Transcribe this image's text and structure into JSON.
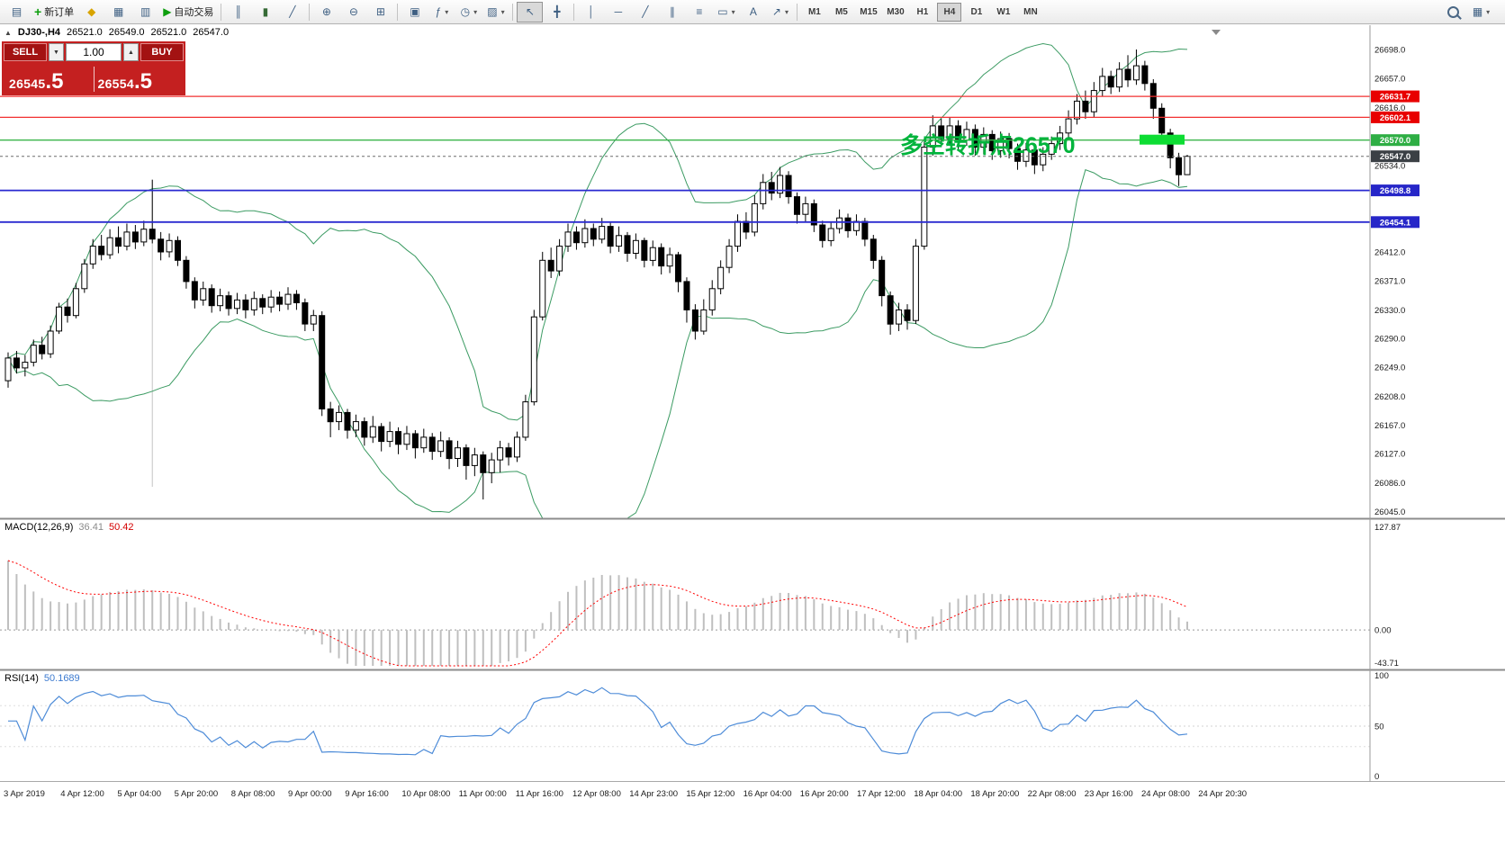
{
  "toolbar": {
    "buttons_left": [
      {
        "name": "new-chart",
        "icon": "chartplus"
      },
      {
        "name": "new-order",
        "icon": "plus",
        "label": "新订单"
      },
      {
        "name": "favorites",
        "icon": "diamond"
      },
      {
        "name": "market-watch",
        "icon": "grid-window"
      },
      {
        "name": "data-window",
        "icon": "panel-window"
      },
      {
        "name": "autotrading",
        "icon": "play",
        "label": "自动交易"
      },
      {
        "sep": true
      },
      {
        "name": "bar-chart",
        "icon": "bars"
      },
      {
        "name": "candlestick-chart",
        "icon": "candles"
      },
      {
        "name": "line-chart",
        "icon": "line"
      },
      {
        "sep": true
      },
      {
        "name": "zoom-in",
        "icon": "zoom-in"
      },
      {
        "name": "zoom-out",
        "icon": "zoom-out"
      },
      {
        "name": "tile-windows",
        "icon": "tile"
      },
      {
        "sep": true
      },
      {
        "name": "auto-arrange",
        "icon": "arrange"
      },
      {
        "name": "indicators",
        "icon": "indicator",
        "dropdown": true
      },
      {
        "name": "periods",
        "icon": "clock",
        "dropdown": true
      },
      {
        "name": "templates",
        "icon": "template",
        "dropdown": true
      },
      {
        "sep": true
      },
      {
        "name": "cursor",
        "icon": "cursor",
        "active": true
      },
      {
        "name": "crosshair",
        "icon": "crosshair"
      },
      {
        "sep": true
      },
      {
        "name": "vertical-line",
        "icon": "vline"
      },
      {
        "name": "horizontal-line",
        "icon": "hline"
      },
      {
        "name": "trendline",
        "icon": "tline"
      },
      {
        "name": "equidistant-channel",
        "icon": "channel"
      },
      {
        "name": "fibonacci",
        "icon": "fibo"
      },
      {
        "name": "shapes",
        "icon": "shapes",
        "dropdown": true
      },
      {
        "name": "text-label",
        "icon": "text"
      },
      {
        "name": "arrow-objects",
        "icon": "arrow",
        "dropdown": true
      }
    ],
    "timeframes": [
      "M1",
      "M5",
      "M15",
      "M30",
      "H1",
      "H4",
      "D1",
      "W1",
      "MN"
    ],
    "active_timeframe": "H4",
    "buttons_right": [
      {
        "name": "search",
        "icon": "magnifier"
      },
      {
        "name": "window-list",
        "icon": "windows",
        "dropdown": true
      }
    ]
  },
  "symbol_line": {
    "collapse": "▲",
    "symbol": "DJ30-,H4",
    "open": "26521.0",
    "high": "26549.0",
    "low": "26521.0",
    "close": "26547.0"
  },
  "trade_panel": {
    "sell_label": "SELL",
    "buy_label": "BUY",
    "volume": "1.00",
    "sell_price_main": "26545",
    "sell_price_big": ".5",
    "buy_price_main": "26554",
    "buy_price_big": ".5"
  },
  "annotation": {
    "text": "多空转折点26570",
    "color": "#00b43c"
  },
  "price_axis": {
    "ticks": [
      26698,
      26657,
      26616,
      26534,
      26412,
      26371,
      26330,
      26290,
      26249,
      26208,
      26167,
      26127,
      26086,
      26045
    ]
  },
  "levels": [
    {
      "name": "resistance-1",
      "price": 26631.7,
      "label": "26631.7",
      "color": "#f23030",
      "badge": "#e80000",
      "style": "solid",
      "width": 1.2
    },
    {
      "name": "resistance-2",
      "price": 26602.1,
      "label": "26602.1",
      "color": "#f23030",
      "badge": "#e80000",
      "style": "solid",
      "width": 1.2
    },
    {
      "name": "pivot-line",
      "price": 26570.0,
      "label": "26570.0",
      "color": "#3ab54a",
      "badge": "#2eae44",
      "style": "solid",
      "width": 1.4
    },
    {
      "name": "current-price",
      "price": 26547.0,
      "label": "26547.0",
      "color": "#6d6d6d",
      "badge": "#3b4045",
      "style": "dashed",
      "width": 1
    },
    {
      "name": "support-1",
      "price": 26498.8,
      "label": "26498.8",
      "color": "#2a2ad0",
      "badge": "#2626c8",
      "style": "solid",
      "width": 1.8
    },
    {
      "name": "support-2",
      "price": 26454.1,
      "label": "26454.1",
      "color": "#2a2ad0",
      "badge": "#2626c8",
      "style": "solid",
      "width": 1.8
    }
  ],
  "macd_panel": {
    "label": "MACD(12,26,9)",
    "main_value": "36.41",
    "signal_value": "50.42",
    "axis_top": "127.87",
    "axis_zero": "0.00",
    "axis_bottom": "-43.71"
  },
  "rsi_panel": {
    "label": "RSI(14)",
    "value": "50.1689",
    "axis_top": "100",
    "axis_mid": "50",
    "axis_bottom": "0"
  },
  "chart_data": {
    "type": "candlestick",
    "symbol": "DJ30-",
    "timeframe": "H4",
    "last_bar": {
      "open": 26521.0,
      "high": 26549.0,
      "low": 26521.0,
      "close": 26547.0
    },
    "price_range": [
      26038,
      26712
    ],
    "indicators": {
      "bollinger_period": 20,
      "bollinger_dev": 2,
      "macd_params": [
        12,
        26,
        9
      ],
      "rsi_period": 14,
      "macd_axis_range": [
        -44,
        128
      ],
      "rsi_axis_range": [
        0,
        100
      ]
    },
    "time_labels": [
      "3 Apr 2019",
      "4 Apr 12:00",
      "5 Apr 04:00",
      "5 Apr 20:00",
      "8 Apr 08:00",
      "9 Apr 00:00",
      "9 Apr 16:00",
      "10 Apr 08:00",
      "11 Apr 00:00",
      "11 Apr 16:00",
      "12 Apr 08:00",
      "14 Apr 23:00",
      "15 Apr 12:00",
      "16 Apr 04:00",
      "16 Apr 20:00",
      "17 Apr 12:00",
      "18 Apr 04:00",
      "18 Apr 20:00",
      "22 Apr 08:00",
      "23 Apr 16:00",
      "24 Apr 08:00",
      "24 Apr 20:30"
    ],
    "candles": [
      [
        26230,
        26270,
        26220,
        26262
      ],
      [
        26262,
        26272,
        26240,
        26248
      ],
      [
        26248,
        26266,
        26236,
        26256
      ],
      [
        26256,
        26288,
        26250,
        26280
      ],
      [
        26280,
        26292,
        26260,
        26268
      ],
      [
        26268,
        26308,
        26262,
        26300
      ],
      [
        26300,
        26340,
        26296,
        26334
      ],
      [
        26334,
        26346,
        26312,
        26322
      ],
      [
        26322,
        26368,
        26318,
        26360
      ],
      [
        26360,
        26402,
        26354,
        26395
      ],
      [
        26395,
        26430,
        26388,
        26420
      ],
      [
        26420,
        26436,
        26400,
        26408
      ],
      [
        26408,
        26444,
        26402,
        26432
      ],
      [
        26432,
        26448,
        26410,
        26420
      ],
      [
        26420,
        26452,
        26414,
        26440
      ],
      [
        26440,
        26450,
        26416,
        26426
      ],
      [
        26426,
        26456,
        26420,
        26444
      ],
      [
        26444,
        26514,
        26424,
        26430
      ],
      [
        26430,
        26440,
        26400,
        26412
      ],
      [
        26412,
        26438,
        26404,
        26428
      ],
      [
        26428,
        26434,
        26392,
        26400
      ],
      [
        26400,
        26406,
        26360,
        26370
      ],
      [
        26370,
        26376,
        26332,
        26344
      ],
      [
        26344,
        26370,
        26336,
        26360
      ],
      [
        26360,
        26366,
        26326,
        26336
      ],
      [
        26336,
        26360,
        26328,
        26350
      ],
      [
        26350,
        26356,
        26322,
        26332
      ],
      [
        26332,
        26354,
        26324,
        26344
      ],
      [
        26344,
        26352,
        26318,
        26330
      ],
      [
        26330,
        26356,
        26322,
        26346
      ],
      [
        26346,
        26352,
        26324,
        26334
      ],
      [
        26334,
        26358,
        26326,
        26348
      ],
      [
        26348,
        26356,
        26328,
        26338
      ],
      [
        26338,
        26362,
        26330,
        26352
      ],
      [
        26352,
        26358,
        26330,
        26340
      ],
      [
        26340,
        26346,
        26300,
        26310
      ],
      [
        26310,
        26330,
        26300,
        26322
      ],
      [
        26322,
        26328,
        26180,
        26190
      ],
      [
        26190,
        26200,
        26150,
        26172
      ],
      [
        26172,
        26195,
        26160,
        26185
      ],
      [
        26185,
        26190,
        26148,
        26160
      ],
      [
        26160,
        26182,
        26150,
        26172
      ],
      [
        26172,
        26178,
        26138,
        26150
      ],
      [
        26150,
        26180,
        26142,
        26165
      ],
      [
        26165,
        26170,
        26130,
        26144
      ],
      [
        26144,
        26172,
        26136,
        26158
      ],
      [
        26158,
        26164,
        26126,
        26140
      ],
      [
        26140,
        26166,
        26132,
        26155
      ],
      [
        26155,
        26160,
        26120,
        26135
      ],
      [
        26135,
        26162,
        26128,
        26150
      ],
      [
        26150,
        26156,
        26118,
        26130
      ],
      [
        26130,
        26158,
        26122,
        26145
      ],
      [
        26145,
        26150,
        26105,
        26120
      ],
      [
        26120,
        26145,
        26108,
        26135
      ],
      [
        26135,
        26140,
        26090,
        26110
      ],
      [
        26110,
        26135,
        26095,
        26125
      ],
      [
        26125,
        26130,
        26062,
        26100
      ],
      [
        26100,
        26128,
        26085,
        26118
      ],
      [
        26118,
        26145,
        26100,
        26135
      ],
      [
        26135,
        26142,
        26110,
        26122
      ],
      [
        26122,
        26158,
        26115,
        26150
      ],
      [
        26150,
        26210,
        26145,
        26200
      ],
      [
        26200,
        26330,
        26195,
        26320
      ],
      [
        26320,
        26412,
        26315,
        26400
      ],
      [
        26400,
        26418,
        26375,
        26385
      ],
      [
        26385,
        26430,
        26378,
        26420
      ],
      [
        26420,
        26452,
        26412,
        26440
      ],
      [
        26440,
        26448,
        26415,
        26425
      ],
      [
        26425,
        26458,
        26418,
        26445
      ],
      [
        26445,
        26452,
        26420,
        26430
      ],
      [
        26430,
        26460,
        26424,
        26448
      ],
      [
        26448,
        26455,
        26410,
        26420
      ],
      [
        26420,
        26448,
        26412,
        26435
      ],
      [
        26435,
        26440,
        26398,
        26410
      ],
      [
        26410,
        26438,
        26402,
        26428
      ],
      [
        26428,
        26432,
        26390,
        26400
      ],
      [
        26400,
        26428,
        26392,
        26418
      ],
      [
        26418,
        26424,
        26380,
        26392
      ],
      [
        26392,
        26418,
        26382,
        26408
      ],
      [
        26408,
        26412,
        26355,
        26370
      ],
      [
        26370,
        26376,
        26312,
        26330
      ],
      [
        26330,
        26338,
        26288,
        26300
      ],
      [
        26300,
        26345,
        26295,
        26330
      ],
      [
        26330,
        26372,
        26322,
        26360
      ],
      [
        26360,
        26400,
        26352,
        26390
      ],
      [
        26390,
        26430,
        26382,
        26420
      ],
      [
        26420,
        26465,
        26412,
        26455
      ],
      [
        26455,
        26468,
        26430,
        26440
      ],
      [
        26440,
        26492,
        26434,
        26480
      ],
      [
        26480,
        26522,
        26472,
        26510
      ],
      [
        26510,
        26525,
        26485,
        26495
      ],
      [
        26495,
        26532,
        26488,
        26520
      ],
      [
        26520,
        26526,
        26480,
        26490
      ],
      [
        26490,
        26496,
        26452,
        26465
      ],
      [
        26465,
        26490,
        26455,
        26480
      ],
      [
        26480,
        26486,
        26440,
        26450
      ],
      [
        26450,
        26456,
        26418,
        26428
      ],
      [
        26428,
        26455,
        26420,
        26445
      ],
      [
        26445,
        26472,
        26438,
        26460
      ],
      [
        26460,
        26466,
        26432,
        26442
      ],
      [
        26442,
        26465,
        26435,
        26455
      ],
      [
        26455,
        26460,
        26420,
        26430
      ],
      [
        26430,
        26436,
        26388,
        26400
      ],
      [
        26400,
        26406,
        26335,
        26350
      ],
      [
        26350,
        26356,
        26295,
        26310
      ],
      [
        26310,
        26340,
        26300,
        26330
      ],
      [
        26330,
        26338,
        26302,
        26315
      ],
      [
        26315,
        26430,
        26310,
        26420
      ],
      [
        26420,
        26572,
        26415,
        26560
      ],
      [
        26560,
        26605,
        26548,
        26590
      ],
      [
        26590,
        26600,
        26560,
        26572
      ],
      [
        26572,
        26602,
        26565,
        26590
      ],
      [
        26590,
        26598,
        26555,
        26570
      ],
      [
        26570,
        26596,
        26562,
        26585
      ],
      [
        26585,
        26592,
        26548,
        26560
      ],
      [
        26560,
        26588,
        26550,
        26578
      ],
      [
        26578,
        26584,
        26542,
        26555
      ],
      [
        26555,
        26582,
        26545,
        26572
      ],
      [
        26572,
        26580,
        26544,
        26558
      ],
      [
        26558,
        26565,
        26528,
        26540
      ],
      [
        26540,
        26566,
        26532,
        26556
      ],
      [
        26556,
        26562,
        26522,
        26535
      ],
      [
        26535,
        26560,
        26526,
        26550
      ],
      [
        26550,
        26575,
        26542,
        26565
      ],
      [
        26565,
        26590,
        26556,
        26580
      ],
      [
        26580,
        26612,
        26572,
        26600
      ],
      [
        26600,
        26635,
        26592,
        26625
      ],
      [
        26625,
        26640,
        26600,
        26610
      ],
      [
        26610,
        26652,
        26602,
        26640
      ],
      [
        26640,
        26672,
        26632,
        26660
      ],
      [
        26660,
        26668,
        26635,
        26645
      ],
      [
        26645,
        26680,
        26638,
        26670
      ],
      [
        26670,
        26690,
        26645,
        26655
      ],
      [
        26655,
        26698,
        26648,
        26675
      ],
      [
        26675,
        26682,
        26640,
        26650
      ],
      [
        26650,
        26656,
        26600,
        26615
      ],
      [
        26615,
        26622,
        26565,
        26580
      ],
      [
        26580,
        26586,
        26530,
        26545
      ],
      [
        26545,
        26552,
        26505,
        26521
      ],
      [
        26521,
        26549,
        26521,
        26547
      ]
    ]
  }
}
